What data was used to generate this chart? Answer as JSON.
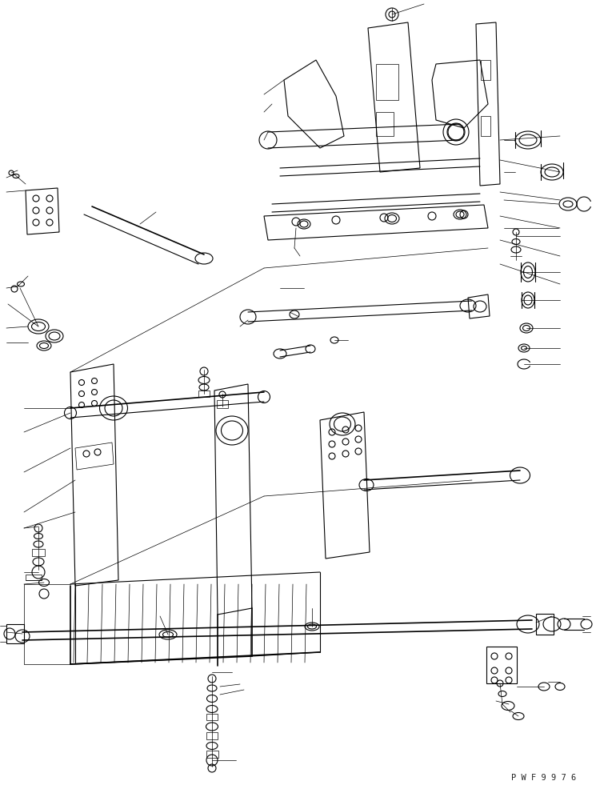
{
  "bg_color": "#ffffff",
  "line_color": "#000000",
  "fig_width": 7.45,
  "fig_height": 9.86,
  "dpi": 100,
  "watermark": "P W F 9 9 7 6"
}
